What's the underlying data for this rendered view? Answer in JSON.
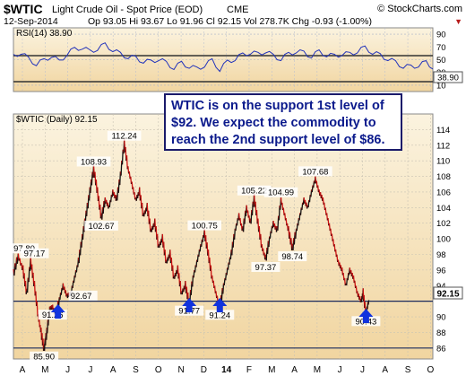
{
  "header": {
    "symbol": "$WTIC",
    "name": "Light Crude Oil - Spot Price (EOD)",
    "exchange": "CME",
    "brand": "© StockCharts.com",
    "date": "12-Sep-2014",
    "quote": "Op 93.05  Hi 93.67  Lo 91.96  Cl 92.15  Vol 278.7K  Chg -0.93 (-1.00%)",
    "down_marker": "▼"
  },
  "rsi_panel": {
    "label": "RSI(14) 38.90",
    "last_value_label": "38.90",
    "ticks": [
      "90",
      "70",
      "50",
      "30",
      "10"
    ]
  },
  "price_panel": {
    "label": "$WTIC (Daily) 92.15",
    "last_price_label": "92.15",
    "ticks": [
      "114",
      "112",
      "110",
      "108",
      "106",
      "104",
      "102",
      "100",
      "98",
      "96",
      "94",
      "90",
      "88",
      "86"
    ]
  },
  "annotation": {
    "line1": "WTIC is on the support 1st level of",
    "line2": "$92. We expect the commodity to",
    "line3": "reach the 2nd support level of $86."
  },
  "x_axis_labels": [
    "A",
    "M",
    "J",
    "J",
    "A",
    "S",
    "O",
    "N",
    "D",
    "14",
    "F",
    "M",
    "A",
    "M",
    "J",
    "J",
    "A",
    "S",
    "O"
  ],
  "colors": {
    "plot_bg_top": "#fbf3df",
    "plot_bg_bottom": "#f1d5a0",
    "rsi_line": "#2233bb",
    "price_up": "#111111",
    "price_down": "#cc1111",
    "support_line": "#1b2a5c",
    "arrow": "#1133dd",
    "accent": "#b71c1c"
  },
  "chart_data": {
    "type": "line",
    "rsi": {
      "x": [
        0,
        8,
        16,
        24,
        32,
        40,
        48,
        56,
        64,
        72,
        80,
        88,
        96,
        104,
        112,
        120,
        128,
        136,
        144,
        152,
        160,
        168,
        176,
        184,
        192,
        200,
        208,
        216,
        224,
        232,
        240,
        248,
        256,
        264,
        272,
        280,
        288,
        296,
        304,
        312,
        320,
        328,
        336,
        344,
        352,
        360,
        368,
        376,
        384,
        392,
        400,
        408,
        416,
        424,
        432,
        439
      ],
      "y": [
        55,
        62,
        50,
        44,
        48,
        57,
        46,
        60,
        66,
        70,
        62,
        68,
        73,
        66,
        58,
        55,
        52,
        48,
        46,
        52,
        44,
        38,
        44,
        40,
        35,
        42,
        48,
        35,
        46,
        52,
        57,
        62,
        58,
        64,
        55,
        52,
        58,
        64,
        60,
        56,
        62,
        58,
        55,
        60,
        58,
        64,
        68,
        62,
        56,
        52,
        45,
        40,
        38,
        42,
        45,
        38.9
      ]
    },
    "price": {
      "annotations": [
        {
          "text": "97.80"
        },
        {
          "text": "97.17"
        },
        {
          "text": "85.90"
        },
        {
          "text": "91.26"
        },
        {
          "text": "92.67"
        },
        {
          "text": "108.93"
        },
        {
          "text": "102.67"
        },
        {
          "text": "112.24"
        },
        {
          "text": "91.77"
        },
        {
          "text": "100.75"
        },
        {
          "text": "91.24"
        },
        {
          "text": "105.22"
        },
        {
          "text": "97.37"
        },
        {
          "text": "104.99"
        },
        {
          "text": "98.74"
        },
        {
          "text": "107.68"
        },
        {
          "text": "90.43"
        }
      ],
      "support_levels": [
        92,
        86
      ],
      "path": [
        [
          0,
          95.5
        ],
        [
          5,
          97.8
        ],
        [
          10,
          96
        ],
        [
          14,
          93
        ],
        [
          18,
          97.17
        ],
        [
          22,
          94
        ],
        [
          26,
          90
        ],
        [
          29,
          88
        ],
        [
          32,
          85.9
        ],
        [
          35,
          88
        ],
        [
          38,
          91
        ],
        [
          41,
          91.26
        ],
        [
          44,
          90
        ],
        [
          48,
          92.2
        ],
        [
          52,
          94
        ],
        [
          56,
          92.67
        ],
        [
          60,
          93
        ],
        [
          64,
          95
        ],
        [
          68,
          97
        ],
        [
          72,
          100
        ],
        [
          76,
          103
        ],
        [
          80,
          106
        ],
        [
          84,
          108.93
        ],
        [
          88,
          106
        ],
        [
          92,
          102.67
        ],
        [
          96,
          105
        ],
        [
          100,
          104
        ],
        [
          104,
          106
        ],
        [
          108,
          105
        ],
        [
          112,
          108
        ],
        [
          116,
          112.24
        ],
        [
          120,
          109
        ],
        [
          124,
          107
        ],
        [
          128,
          105
        ],
        [
          132,
          106
        ],
        [
          136,
          103
        ],
        [
          140,
          104
        ],
        [
          144,
          101
        ],
        [
          148,
          102
        ],
        [
          152,
          99
        ],
        [
          156,
          100
        ],
        [
          160,
          97
        ],
        [
          164,
          98
        ],
        [
          168,
          95
        ],
        [
          172,
          96
        ],
        [
          176,
          93
        ],
        [
          180,
          94
        ],
        [
          184,
          91.77
        ],
        [
          188,
          95
        ],
        [
          192,
          97
        ],
        [
          196,
          99
        ],
        [
          200,
          100.75
        ],
        [
          204,
          98
        ],
        [
          208,
          95
        ],
        [
          212,
          93
        ],
        [
          216,
          91.24
        ],
        [
          220,
          94
        ],
        [
          224,
          96
        ],
        [
          228,
          98
        ],
        [
          232,
          101
        ],
        [
          236,
          103
        ],
        [
          240,
          101
        ],
        [
          244,
          104
        ],
        [
          248,
          102
        ],
        [
          252,
          105.22
        ],
        [
          256,
          102
        ],
        [
          260,
          99
        ],
        [
          264,
          97.37
        ],
        [
          268,
          100
        ],
        [
          272,
          102
        ],
        [
          276,
          101
        ],
        [
          280,
          104.99
        ],
        [
          284,
          103
        ],
        [
          288,
          101
        ],
        [
          292,
          98.74
        ],
        [
          296,
          101
        ],
        [
          300,
          103
        ],
        [
          304,
          105
        ],
        [
          308,
          104
        ],
        [
          312,
          106
        ],
        [
          316,
          107.68
        ],
        [
          320,
          106
        ],
        [
          324,
          105
        ],
        [
          328,
          103
        ],
        [
          332,
          101
        ],
        [
          336,
          99
        ],
        [
          340,
          97
        ],
        [
          344,
          96
        ],
        [
          348,
          94
        ],
        [
          352,
          96
        ],
        [
          356,
          95
        ],
        [
          360,
          93
        ],
        [
          364,
          92
        ],
        [
          366,
          93.05
        ],
        [
          369,
          90.43
        ],
        [
          372,
          92.15
        ]
      ],
      "ylim": [
        84.6,
        116.0
      ]
    }
  }
}
